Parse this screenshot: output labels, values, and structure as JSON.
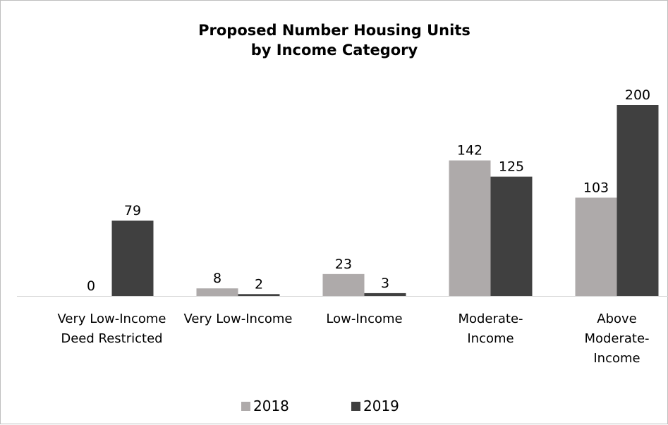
{
  "chart_data": {
    "type": "bar",
    "title_lines": [
      "Proposed Number Housing Units",
      "by Income Category"
    ],
    "title": "Proposed Number Housing Units by Income Category",
    "categories": [
      "Very Low-Income Deed Restricted",
      "Very Low-Income",
      "Low-Income",
      "Moderate-Income",
      "Above Moderate-Income"
    ],
    "category_label_lines": [
      [
        "Very Low-Income",
        "Deed Restricted"
      ],
      [
        "Very Low-Income"
      ],
      [
        "Low-Income"
      ],
      [
        "Moderate-",
        "Income"
      ],
      [
        "Above",
        "Moderate-",
        "Income"
      ]
    ],
    "series": [
      {
        "name": "2018",
        "color": "#aeaaaa",
        "values": [
          0,
          8,
          23,
          142,
          103
        ]
      },
      {
        "name": "2019",
        "color": "#404040",
        "values": [
          79,
          2,
          3,
          125,
          200
        ]
      }
    ],
    "ylim": [
      0,
      200
    ],
    "grid": false,
    "data_labels": true,
    "legend_position": "bottom",
    "xlabel": "",
    "ylabel": ""
  }
}
